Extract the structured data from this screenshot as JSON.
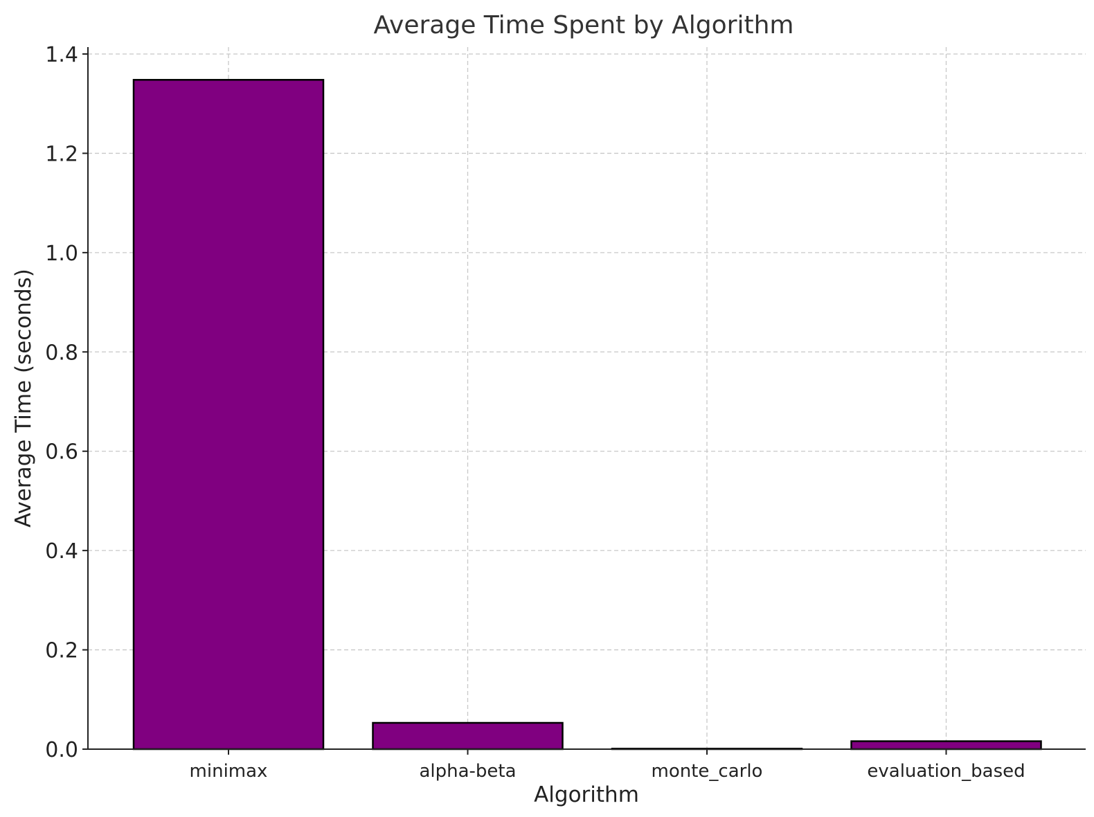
{
  "chart_data": {
    "type": "bar",
    "title": "Average Time Spent by Algorithm",
    "xlabel": "Algorithm",
    "ylabel": "Average Time (seconds)",
    "categories": [
      "minimax",
      "alpha-beta",
      "monte_carlo",
      "evaluation_based"
    ],
    "values": [
      1.348,
      0.053,
      0.001,
      0.016
    ],
    "ylim": [
      0,
      1.4
    ],
    "yticks": [
      0.0,
      0.2,
      0.4,
      0.6,
      0.8,
      1.0,
      1.2,
      1.4
    ],
    "ytick_labels": [
      "0.0",
      "0.2",
      "0.4",
      "0.6",
      "0.8",
      "1.0",
      "1.2",
      "1.4"
    ],
    "bar_color": "#800080",
    "edge_color": "#000000",
    "grid": true
  }
}
